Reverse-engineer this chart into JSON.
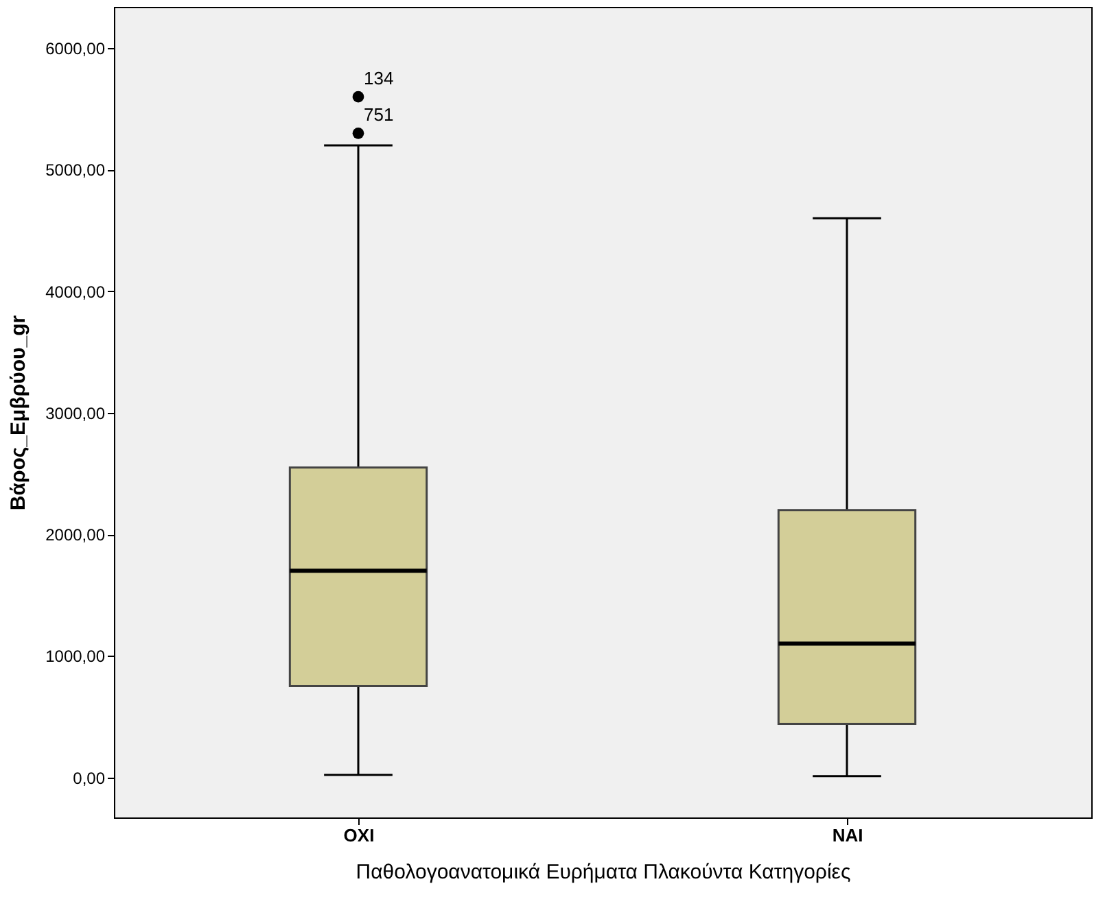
{
  "chart_data": {
    "type": "box",
    "xlabel": "Παθολογοανατομικά Ευρήματα Πλακούντα Κατηγορίες",
    "ylabel": "Βάρος_Εμβρύου_gr",
    "categories": [
      "ΟΧΙ",
      "ΝΑΙ"
    ],
    "series": [
      {
        "color": "#d3ce98",
        "boxes": [
          {
            "low": 20,
            "q1": 750,
            "median": 1700,
            "q3": 2550,
            "high": 5200,
            "outliers": [
              5600,
              5300
            ]
          },
          {
            "low": 10,
            "q1": 440,
            "median": 1100,
            "q3": 2200,
            "high": 4600
          }
        ]
      }
    ],
    "ylim": [
      -330,
      6340
    ],
    "yticks": [
      {
        "value": 0,
        "label": "0,00"
      },
      {
        "value": 1000,
        "label": "1000,00"
      },
      {
        "value": 2000,
        "label": "2000,00"
      },
      {
        "value": 3000,
        "label": "3000,00"
      },
      {
        "value": 4000,
        "label": "4000,00"
      },
      {
        "value": 5000,
        "label": "5000,00"
      },
      {
        "value": 6000,
        "label": "6000,00"
      }
    ],
    "annotations": [
      "134",
      "751"
    ],
    "grid": false
  }
}
